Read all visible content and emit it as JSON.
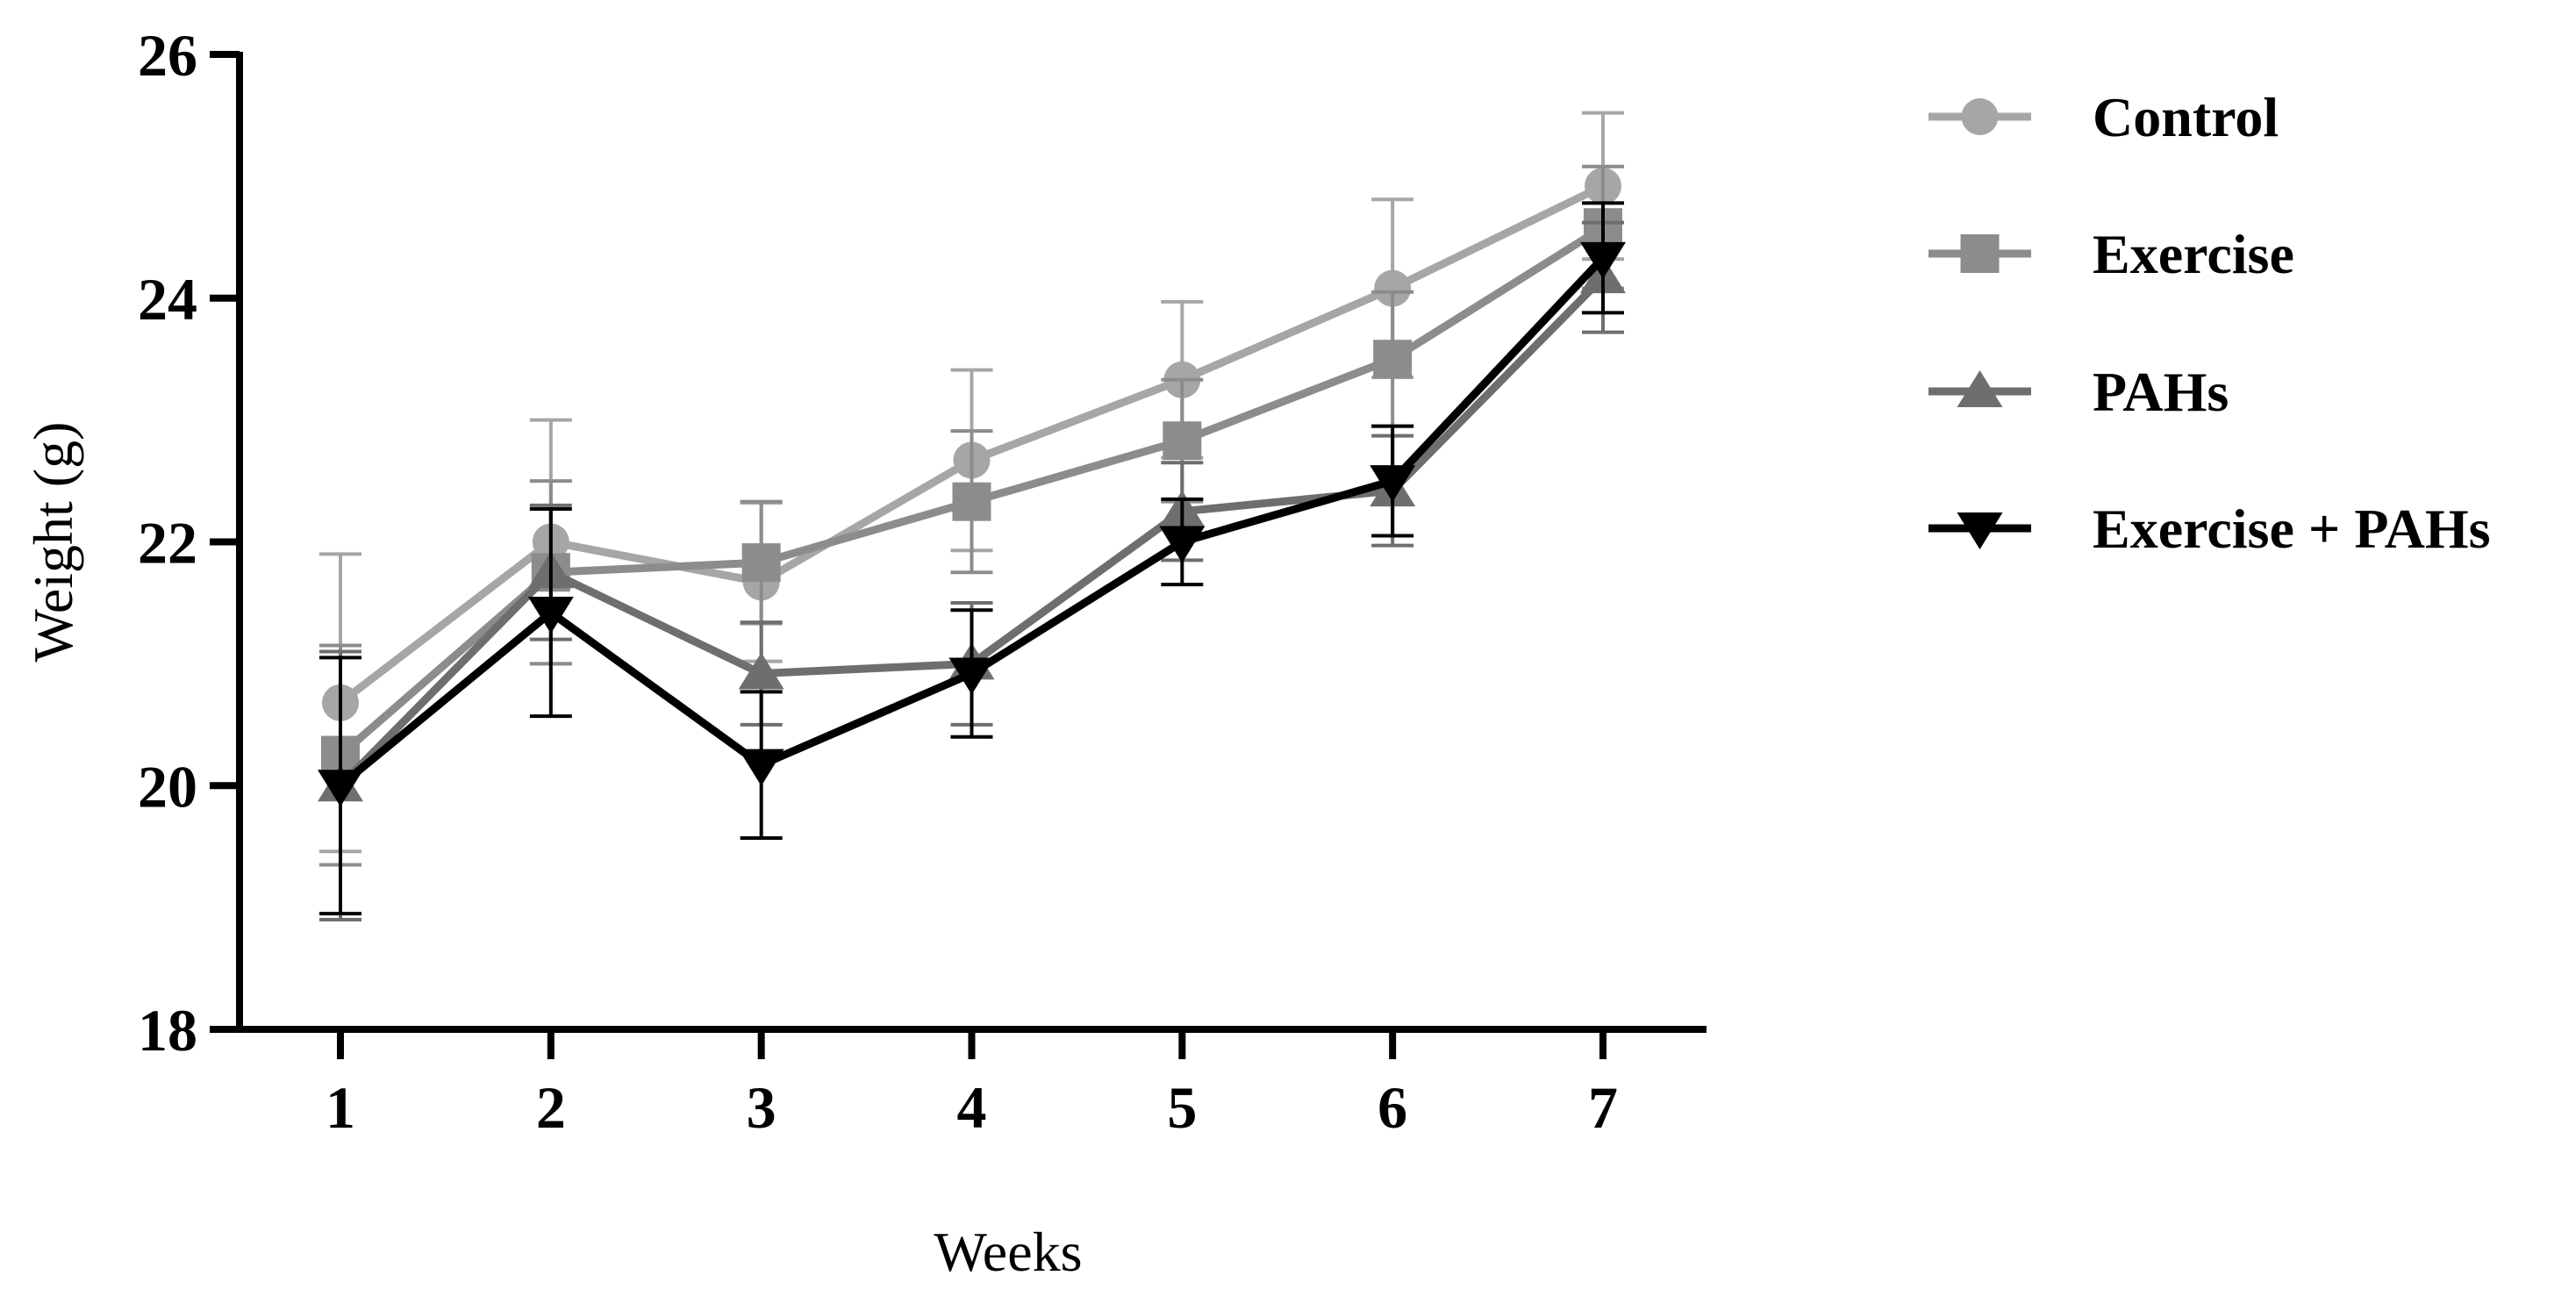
{
  "chart_data": {
    "type": "line",
    "title": "",
    "xlabel": "Weeks",
    "ylabel": "Weight (g)",
    "x": [
      1,
      2,
      3,
      4,
      5,
      6,
      7
    ],
    "x_tick_labels": [
      "1",
      "2",
      "3",
      "4",
      "5",
      "6",
      "7"
    ],
    "ylim": [
      18,
      26
    ],
    "y_ticks": [
      18,
      20,
      22,
      24,
      26
    ],
    "y_tick_labels": [
      "18",
      "20",
      "22",
      "24",
      "26"
    ],
    "grid": false,
    "legend_position": "right",
    "series": [
      {
        "name": "Control",
        "marker": "circle",
        "color": "#a6a6a6",
        "values": [
          20.68,
          22.0,
          21.67,
          22.67,
          23.33,
          24.08,
          24.92
        ],
        "error": [
          1.22,
          1.0,
          0.65,
          0.74,
          0.64,
          0.73,
          0.6
        ]
      },
      {
        "name": "Exercise",
        "marker": "square",
        "color": "#8c8c8c",
        "values": [
          20.25,
          21.75,
          21.83,
          22.33,
          22.83,
          23.5,
          24.58
        ],
        "error": [
          0.9,
          0.75,
          0.5,
          0.58,
          0.5,
          0.55,
          0.5
        ]
      },
      {
        "name": "PAHs",
        "marker": "triangle-up",
        "color": "#6e6e6e",
        "values": [
          20.0,
          21.75,
          20.92,
          21.0,
          22.25,
          22.42,
          24.17
        ],
        "error": [
          1.1,
          0.55,
          0.42,
          0.5,
          0.4,
          0.45,
          0.45
        ]
      },
      {
        "name": "Exercise + PAHs",
        "marker": "triangle-down",
        "color": "#000000",
        "values": [
          20.0,
          21.42,
          20.17,
          20.92,
          22.0,
          22.5,
          24.33
        ],
        "error": [
          1.05,
          0.85,
          0.6,
          0.52,
          0.35,
          0.45,
          0.45
        ]
      }
    ]
  }
}
